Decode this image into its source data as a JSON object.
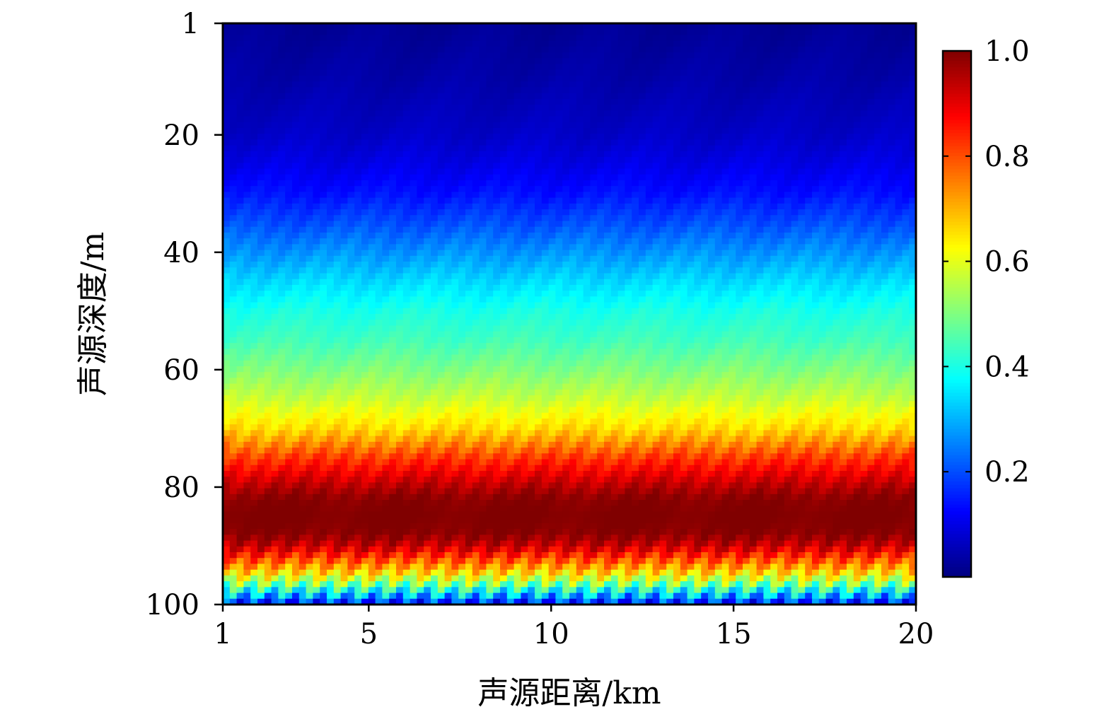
{
  "chart_data": {
    "type": "heatmap",
    "title": "",
    "xlabel": "声源距离/km",
    "ylabel": "声源深度/m",
    "xlim": [
      1,
      20
    ],
    "ylim": [
      1,
      100
    ],
    "y_inverted": true,
    "xticks": [
      1,
      5,
      10,
      15,
      20
    ],
    "yticks": [
      1,
      20,
      40,
      60,
      80,
      100
    ],
    "colorbar": {
      "colormap": "jet",
      "range": [
        0,
        1.0
      ],
      "ticks": [
        0.2,
        0.4,
        0.6,
        0.8,
        1.0
      ],
      "tick_labels": [
        "0.2",
        "0.4",
        "0.6",
        "0.8",
        "1.0"
      ]
    },
    "depth_profile": {
      "depth_m": [
        1,
        10,
        20,
        25,
        30,
        35,
        40,
        45,
        50,
        55,
        60,
        65,
        70,
        72,
        75,
        78,
        80,
        82,
        85,
        88,
        90,
        91,
        92,
        93,
        94,
        95,
        96,
        97,
        98,
        99,
        100
      ],
      "value": [
        0.02,
        0.04,
        0.07,
        0.1,
        0.14,
        0.2,
        0.27,
        0.34,
        0.4,
        0.44,
        0.5,
        0.57,
        0.66,
        0.72,
        0.82,
        0.9,
        0.95,
        0.99,
        1.0,
        0.99,
        0.93,
        0.88,
        0.82,
        0.76,
        0.7,
        0.63,
        0.55,
        0.45,
        0.35,
        0.25,
        0.12
      ]
    },
    "range_variation": "nearly uniform along range"
  }
}
